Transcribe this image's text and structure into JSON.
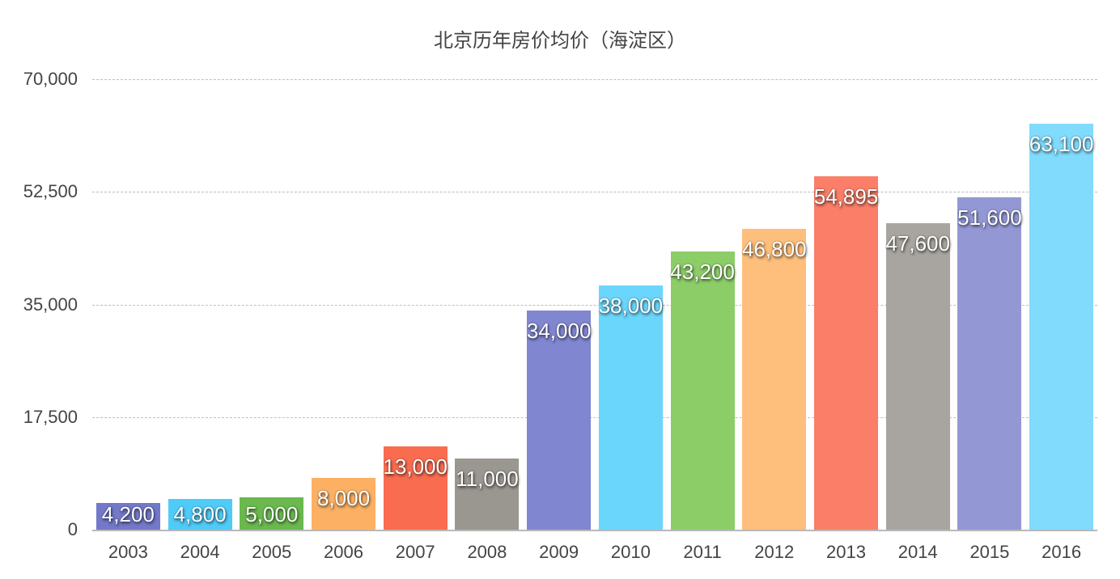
{
  "chart_data": {
    "type": "bar",
    "title": "北京历年房价均价（海淀区）",
    "xlabel": "",
    "ylabel": "",
    "ylim": [
      0,
      70000
    ],
    "yticks": [
      0,
      17500,
      35000,
      52500,
      70000
    ],
    "ytick_labels": [
      "0",
      "17,500",
      "35,000",
      "52,500",
      "70,000"
    ],
    "grid": true,
    "legend": "none",
    "categories": [
      "2003",
      "2004",
      "2005",
      "2006",
      "2007",
      "2008",
      "2009",
      "2010",
      "2011",
      "2012",
      "2013",
      "2014",
      "2015",
      "2016"
    ],
    "values": [
      4200,
      4800,
      5000,
      8000,
      13000,
      11000,
      34000,
      38000,
      43200,
      46800,
      54895,
      47600,
      51600,
      63100
    ],
    "value_labels": [
      "4,200",
      "4,800",
      "5,000",
      "8,000",
      "13,000",
      "11,000",
      "34,000",
      "38,000",
      "43,200",
      "46,800",
      "54,895",
      "47,600",
      "51,600",
      "63,100"
    ],
    "colors": [
      "#7378c8",
      "#4fcbf8",
      "#6ab84e",
      "#fcb064",
      "#f96c50",
      "#9a9690",
      "#8086cf",
      "#6ad6fc",
      "#8ccd68",
      "#fdbf7b",
      "#fa7e68",
      "#a8a5a0",
      "#9398d5",
      "#80dbfc"
    ]
  }
}
